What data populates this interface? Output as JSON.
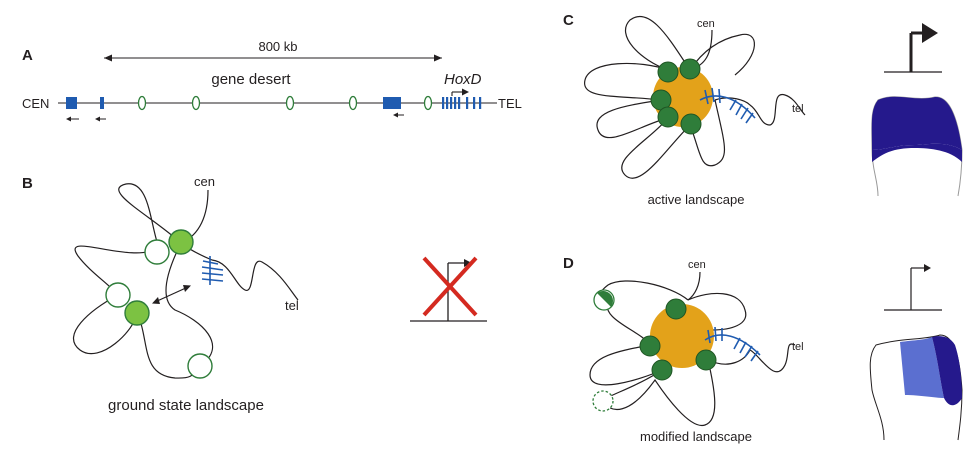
{
  "panels": {
    "a": "A",
    "b": "B",
    "c": "C",
    "d": "D"
  },
  "panel_a": {
    "scale_label": "800 kb",
    "gene_desert_label": "gene desert",
    "cen_label": "CEN",
    "tel_label": "TEL",
    "hoxd_label": "HoxD"
  },
  "panel_b": {
    "cen_label": "cen",
    "tel_label": "tel",
    "caption": "ground state landscape"
  },
  "panel_c": {
    "cen_label": "cen",
    "tel_label": "tel",
    "caption": "active landscape"
  },
  "panel_d": {
    "cen_label": "cen",
    "tel_label": "tel",
    "caption": "modified landscape"
  },
  "colors": {
    "gene_blue": "#1f5bb0",
    "enhancer_green": "#2f7d3a",
    "light_green": "#7cc242",
    "orange_hub": "#e3a21a",
    "limb_dark_blue": "#25198c",
    "limb_light_blue": "#5b6fd0",
    "cross_red": "#d42a20"
  }
}
